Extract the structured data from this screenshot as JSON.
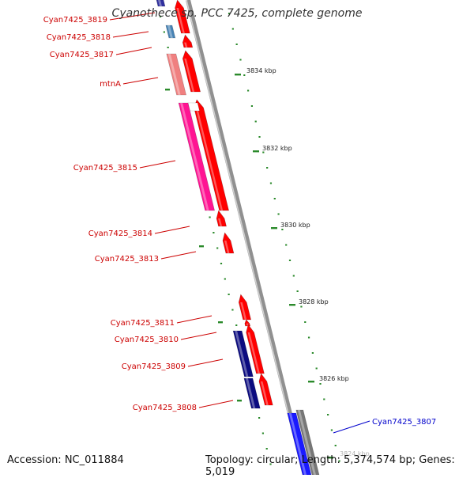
{
  "title": "Cyanothece sp. PCC 7425, complete genome",
  "accession_text": "Accession: NC_011884",
  "summary_text": "Topology: circular; Length: 5,374,574 bp; Genes: 5,019",
  "colors": {
    "backbone": "#8c8c8c",
    "forward_cds": "#ff0000",
    "forward_label": "#cc0000",
    "reverse_label": "#0000cc",
    "ticks": "#2b8a2b",
    "rna_gene": "#f08080",
    "pink_cds": "#ff1493",
    "navy_cds": "#0c0c80",
    "blue_cds": "#1a1aff",
    "steel_cds": "#4682b4",
    "gray_cds": "#777777"
  },
  "kbp_labels": [
    {
      "kbp": "3834 kbp"
    },
    {
      "kbp": "3832 kbp"
    },
    {
      "kbp": "3830 kbp"
    },
    {
      "kbp": "3828 kbp"
    },
    {
      "kbp": "3826 kbp"
    },
    {
      "kbp": "3824 kbp"
    }
  ],
  "gene_labels": [
    {
      "name": "Cyan7425_3819",
      "strand": "forward"
    },
    {
      "name": "Cyan7425_3818",
      "strand": "forward"
    },
    {
      "name": "Cyan7425_3817",
      "strand": "forward"
    },
    {
      "name": "mtnA",
      "strand": "forward"
    },
    {
      "name": "Cyan7425_3815",
      "strand": "forward"
    },
    {
      "name": "Cyan7425_3814",
      "strand": "forward"
    },
    {
      "name": "Cyan7425_3813",
      "strand": "forward"
    },
    {
      "name": "Cyan7425_3811",
      "strand": "forward"
    },
    {
      "name": "Cyan7425_3810",
      "strand": "forward"
    },
    {
      "name": "Cyan7425_3809",
      "strand": "forward"
    },
    {
      "name": "Cyan7425_3808",
      "strand": "forward"
    },
    {
      "name": "Cyan7425_3807",
      "strand": "reverse"
    }
  ]
}
